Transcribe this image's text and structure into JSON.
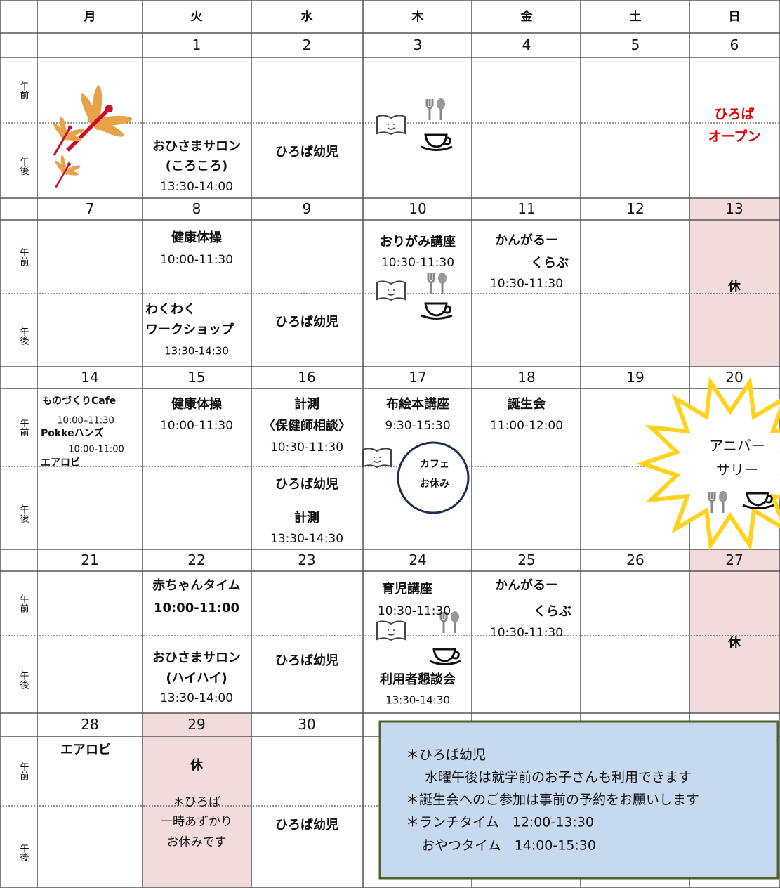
{
  "weekdays": [
    "月",
    "火",
    "水",
    "木",
    "金",
    "土",
    "日"
  ],
  "am": "午前",
  "pm": "午後",
  "weeks": [
    {
      "dates": [
        null,
        1,
        2,
        3,
        4,
        5,
        6
      ],
      "events": [
        null,
        [
          "おひさまサロン",
          "(ころころ)",
          "13:30-14:00"
        ],
        [
          "ひろば幼児"
        ],
        null,
        null,
        null,
        [
          "ひろば",
          "オープン"
        ]
      ]
    },
    {
      "dates": [
        7,
        8,
        9,
        10,
        11,
        12,
        13
      ],
      "events": [
        null,
        [
          "健康体操",
          "10:00-11:30",
          "わくわく",
          "ワークショップ",
          "13:30-14:30"
        ],
        [
          "ひろば幼児"
        ],
        [
          "おりがみ講座",
          "10:30-11:30"
        ],
        [
          "かんがるー",
          "くらぶ",
          "10:30-11:30"
        ],
        null,
        [
          "休"
        ]
      ]
    },
    {
      "dates": [
        14,
        15,
        16,
        17,
        18,
        19,
        20
      ],
      "events": [
        [
          "ものづくりCafe",
          "10:00–11:30",
          "Pokkeハンズ",
          "10:00-11:00",
          "エアロビ"
        ],
        [
          "健康体操",
          "10:00-11:30"
        ],
        [
          "計測",
          "〈保健師相談〉",
          "10:30-11:30",
          "ひろば幼児",
          "計測",
          "13:30-14:30"
        ],
        [
          "布絵本講座",
          "9:30-15:30",
          "カフェ",
          "お休み"
        ],
        [
          "誕生会",
          "11:00-12:00"
        ],
        null,
        [
          "アニバー",
          "サリー"
        ]
      ]
    },
    {
      "dates": [
        21,
        22,
        23,
        24,
        25,
        26,
        27
      ],
      "events": [
        null,
        [
          "赤ちゃんタイム",
          "10:00-11:00",
          "おひさまサロン",
          "(ハイハイ)",
          "13:30-14:00"
        ],
        [
          "ひろば幼児"
        ],
        [
          "育児講座",
          "10:30-11:30",
          "利用者懇談会",
          "13:30-14:30"
        ],
        [
          "かんがるー",
          "くらぶ",
          "10:30-11:30"
        ],
        null,
        [
          "休"
        ]
      ]
    },
    {
      "dates": [
        28,
        29,
        30,
        null,
        null,
        null,
        null
      ],
      "events": [
        [
          "エアロビ"
        ],
        [
          "休",
          "＊ひろば",
          "一時あずかり",
          "お休みです"
        ],
        [
          "ひろば幼児"
        ],
        null,
        null,
        null,
        null
      ]
    }
  ],
  "notes": [
    "＊ひろば幼児",
    "水曜午後は就学前のお子さんも利用できます",
    "＊誕生会へのご参加は事前の予約をお願いします",
    "＊ランチタイム　12:00-13:30",
    "おやつタイム　14:00-15:30"
  ]
}
